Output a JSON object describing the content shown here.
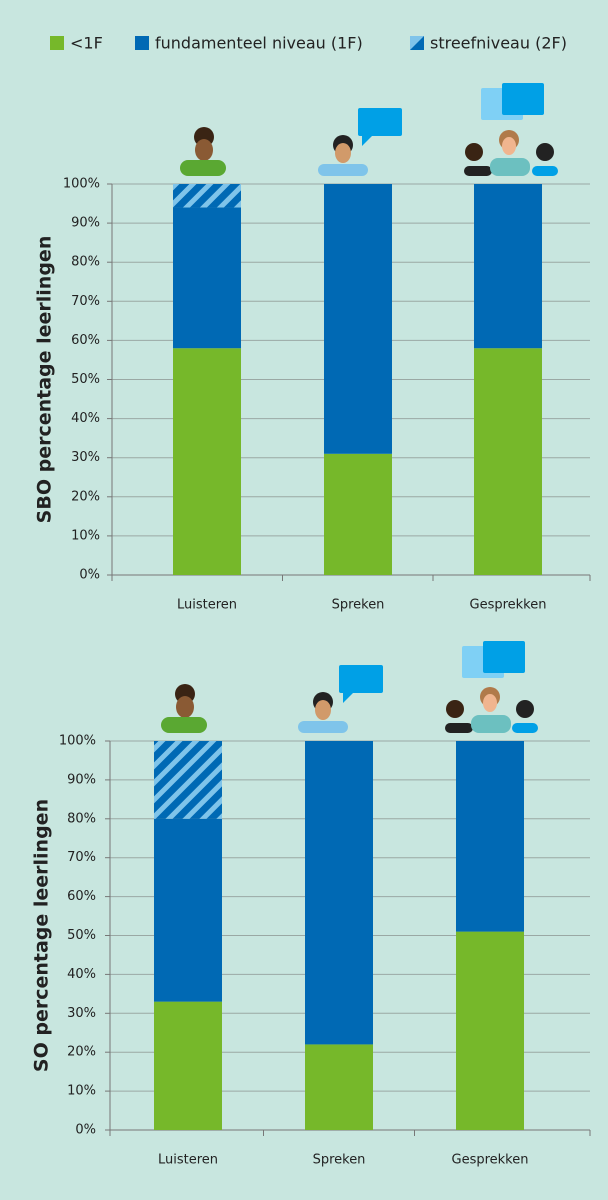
{
  "chart_data": [
    {
      "type": "bar",
      "stacked": true,
      "ylabel": "SBO percentage leerlingen",
      "categories": [
        "Luisteren",
        "Spreken",
        "Gesprekken"
      ],
      "series": [
        {
          "name": "<1F",
          "color": "#76b82a",
          "values": [
            58,
            31,
            58
          ]
        },
        {
          "name": "fundamenteel niveau (1F)",
          "color": "#0069b4",
          "values": [
            36,
            69,
            42
          ]
        },
        {
          "name": "streefniveau (2F)",
          "color": "#0069b4",
          "hatch": "#7fc4ea",
          "values": [
            6,
            0,
            0
          ]
        }
      ],
      "ylim": [
        0,
        100
      ],
      "yticks": [
        {
          "value": 0,
          "label": "0%"
        },
        {
          "value": 10,
          "label": "10%"
        },
        {
          "value": 20,
          "label": "20%"
        },
        {
          "value": 30,
          "label": "30%"
        },
        {
          "value": 40,
          "label": "40%"
        },
        {
          "value": 50,
          "label": "50%"
        },
        {
          "value": 60,
          "label": "60%"
        },
        {
          "value": 70,
          "label": "70%"
        },
        {
          "value": 80,
          "label": "80%"
        },
        {
          "value": 90,
          "label": "90%"
        },
        {
          "value": 100,
          "label": "100%"
        }
      ],
      "grid": true
    },
    {
      "type": "bar",
      "stacked": true,
      "ylabel": "SO percentage leerlingen",
      "categories": [
        "Luisteren",
        "Spreken",
        "Gesprekken"
      ],
      "series": [
        {
          "color": "#76b82a",
          "values": [
            33,
            22,
            51
          ]
        },
        {
          "color": "#0069b4",
          "values": [
            47,
            78,
            49
          ]
        },
        {
          "color": "#0069b4",
          "hatch": "#7fc4ea",
          "values": [
            20,
            0,
            0
          ]
        }
      ],
      "ylim": [
        0,
        100
      ],
      "yticks": [
        {
          "value": 0,
          "label": "0%"
        },
        {
          "value": 10,
          "label": "10%"
        },
        {
          "value": 20,
          "label": "20%"
        },
        {
          "value": 30,
          "label": "30%"
        },
        {
          "value": 40,
          "label": "40%"
        },
        {
          "value": 50,
          "label": "50%"
        },
        {
          "value": 60,
          "label": "60%"
        },
        {
          "value": 70,
          "label": "70%"
        },
        {
          "value": 80,
          "label": "80%"
        },
        {
          "value": 90,
          "label": "90%"
        },
        {
          "value": 100,
          "label": "100%"
        }
      ],
      "grid": true
    }
  ]
}
